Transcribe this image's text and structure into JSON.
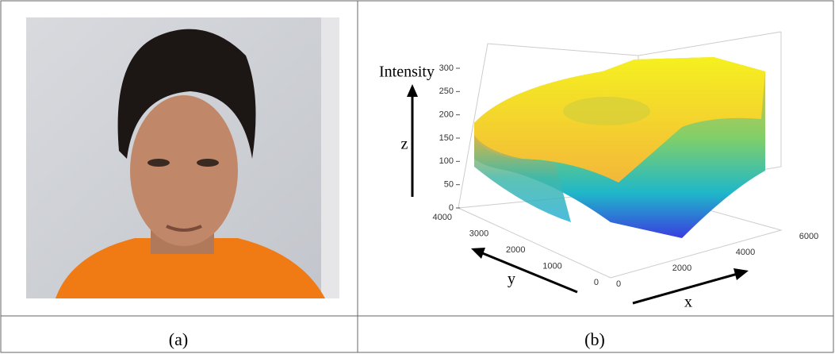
{
  "panels": [
    {
      "label": "(a)"
    },
    {
      "label": "(b)",
      "z_label": "Intensity",
      "z_axis": "z",
      "y_axis": "y",
      "x_axis": "x",
      "zticks": [
        0,
        50,
        100,
        150,
        200,
        250,
        300
      ],
      "yticks": [
        0,
        1000,
        2000,
        3000,
        4000
      ],
      "xticks": [
        0,
        2000,
        4000,
        6000
      ]
    }
  ]
}
